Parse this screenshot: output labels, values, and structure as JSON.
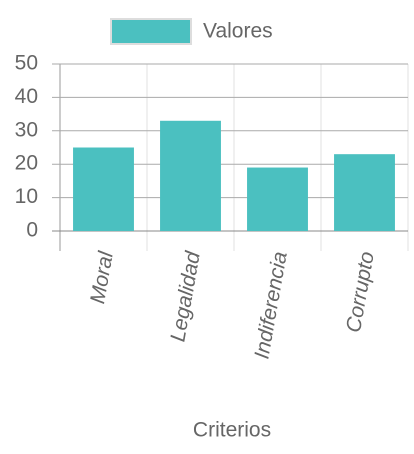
{
  "chart_data": {
    "type": "bar",
    "x_label": "Criterios",
    "series": [
      {
        "name": "Valores",
        "color": "#4bc0c0",
        "values": [
          25,
          33,
          19,
          23
        ]
      }
    ],
    "categories": [
      "Moral",
      "Legalidad",
      "Indiferencia",
      "Corrupto"
    ],
    "ylim": [
      0,
      50
    ],
    "yticks": [
      0,
      10,
      20,
      30,
      40,
      50
    ],
    "grid": true,
    "legend": "top"
  }
}
